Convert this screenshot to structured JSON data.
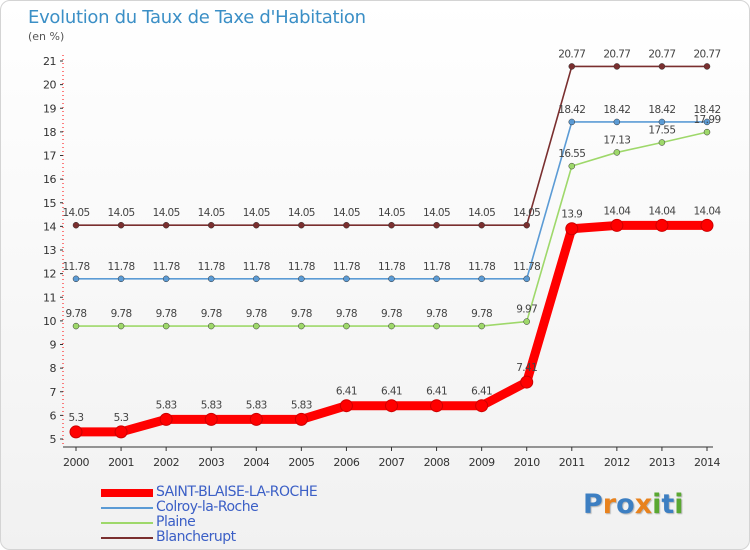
{
  "title": "Evolution du Taux de Taxe d'Habitation",
  "subtitle": "(en %)",
  "logo": {
    "text": "Proxiti",
    "letters": [
      {
        "ch": "P",
        "color": "#3d7fc2"
      },
      {
        "ch": "r",
        "color": "#e8821d"
      },
      {
        "ch": "o",
        "color": "#3d7fc2"
      },
      {
        "ch": "x",
        "color": "#e8821d"
      },
      {
        "ch": "i",
        "color": "#5aa832"
      },
      {
        "ch": "t",
        "color": "#3d7fc2"
      },
      {
        "ch": "i",
        "color": "#5aa832"
      }
    ]
  },
  "chart_data": {
    "type": "line",
    "title": "Evolution du Taux de Taxe d'Habitation",
    "ylabel": "(en %)",
    "xlabel": "",
    "x": [
      "2000",
      "2001",
      "2002",
      "2003",
      "2004",
      "2005",
      "2006",
      "2007",
      "2008",
      "2009",
      "2010",
      "2011",
      "2012",
      "2013",
      "2014"
    ],
    "ylim": [
      5,
      21
    ],
    "yticks": [
      "5",
      "6",
      "7",
      "8",
      "9",
      "10",
      "11",
      "12",
      "13",
      "14",
      "15",
      "16",
      "17",
      "18",
      "19",
      "20",
      "21"
    ],
    "grid": false,
    "legend_position": "bottom-left",
    "series": [
      {
        "name": "Blancherupt",
        "color": "#7a2f2f",
        "values": [
          14.05,
          14.05,
          14.05,
          14.05,
          14.05,
          14.05,
          14.05,
          14.05,
          14.05,
          14.05,
          14.05,
          20.77,
          20.77,
          20.77,
          20.77
        ],
        "labels": [
          "14.05",
          "14.05",
          "14.05",
          "14.05",
          "14.05",
          "14.05",
          "14.05",
          "14.05",
          "14.05",
          "14.05",
          "14.05",
          "20.77",
          "20.77",
          "20.77",
          "20.77"
        ]
      },
      {
        "name": "Colroy-la-Roche",
        "color": "#5b9bd5",
        "values": [
          11.78,
          11.78,
          11.78,
          11.78,
          11.78,
          11.78,
          11.78,
          11.78,
          11.78,
          11.78,
          11.78,
          18.42,
          18.42,
          18.42,
          18.42
        ],
        "labels": [
          "11.78",
          "11.78",
          "11.78",
          "11.78",
          "11.78",
          "11.78",
          "11.78",
          "11.78",
          "11.78",
          "11.78",
          "11.78",
          "18.42",
          "18.42",
          "18.42",
          "18.42"
        ]
      },
      {
        "name": "Plaine",
        "color": "#9ed86a",
        "values": [
          9.78,
          9.78,
          9.78,
          9.78,
          9.78,
          9.78,
          9.78,
          9.78,
          9.78,
          9.78,
          9.97,
          16.55,
          17.13,
          17.55,
          17.99
        ],
        "labels": [
          "9.78",
          "9.78",
          "9.78",
          "9.78",
          "9.78",
          "9.78",
          "9.78",
          "9.78",
          "9.78",
          "9.78",
          "9.97",
          "16.55",
          "17.13",
          "17.55",
          "17.99"
        ]
      },
      {
        "name": "SAINT-BLAISE-LA-ROCHE",
        "color": "#ff0000",
        "values": [
          5.3,
          5.3,
          5.83,
          5.83,
          5.83,
          5.83,
          6.41,
          6.41,
          6.41,
          6.41,
          7.41,
          13.9,
          14.04,
          14.04,
          14.04
        ],
        "labels": [
          "5.3",
          "5.3",
          "5.83",
          "5.83",
          "5.83",
          "5.83",
          "6.41",
          "6.41",
          "6.41",
          "6.41",
          "7.41",
          "13.9",
          "14.04",
          "14.04",
          "14.04"
        ]
      }
    ],
    "legend": [
      "SAINT-BLAISE-LA-ROCHE",
      "Colroy-la-Roche",
      "Plaine",
      "Blancherupt"
    ]
  }
}
